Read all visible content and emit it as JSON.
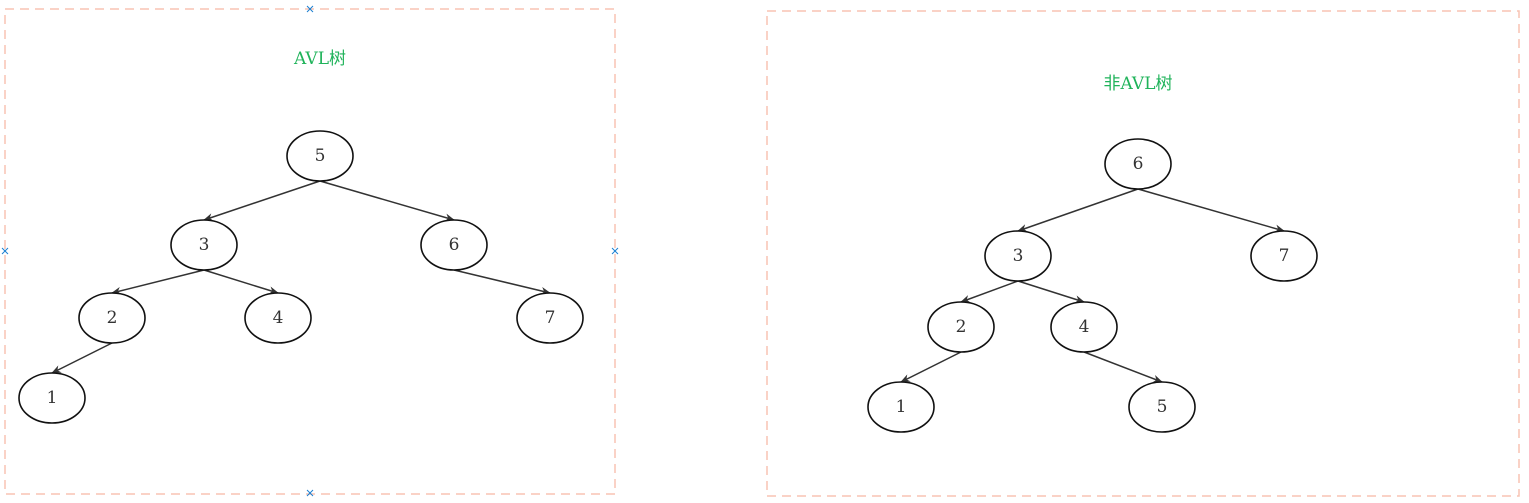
{
  "panels": [
    {
      "id": "avl",
      "title": "AVL树",
      "nodes": [
        {
          "id": "n5",
          "label": "5"
        },
        {
          "id": "n3",
          "label": "3"
        },
        {
          "id": "n6",
          "label": "6"
        },
        {
          "id": "n2",
          "label": "2"
        },
        {
          "id": "n4",
          "label": "4"
        },
        {
          "id": "n7",
          "label": "7"
        },
        {
          "id": "n1",
          "label": "1"
        }
      ],
      "edges": [
        {
          "from": "n5",
          "to": "n3"
        },
        {
          "from": "n5",
          "to": "n6"
        },
        {
          "from": "n3",
          "to": "n2"
        },
        {
          "from": "n3",
          "to": "n4"
        },
        {
          "from": "n6",
          "to": "n7"
        },
        {
          "from": "n2",
          "to": "n1"
        }
      ]
    },
    {
      "id": "non-avl",
      "title": "非AVL树",
      "nodes": [
        {
          "id": "m6",
          "label": "6"
        },
        {
          "id": "m3",
          "label": "3"
        },
        {
          "id": "m7",
          "label": "7"
        },
        {
          "id": "m2",
          "label": "2"
        },
        {
          "id": "m4",
          "label": "4"
        },
        {
          "id": "m1",
          "label": "1"
        },
        {
          "id": "m5",
          "label": "5"
        }
      ],
      "edges": [
        {
          "from": "m6",
          "to": "m3"
        },
        {
          "from": "m6",
          "to": "m7"
        },
        {
          "from": "m3",
          "to": "m2"
        },
        {
          "from": "m3",
          "to": "m4"
        },
        {
          "from": "m2",
          "to": "m1"
        },
        {
          "from": "m4",
          "to": "m5"
        }
      ]
    }
  ]
}
